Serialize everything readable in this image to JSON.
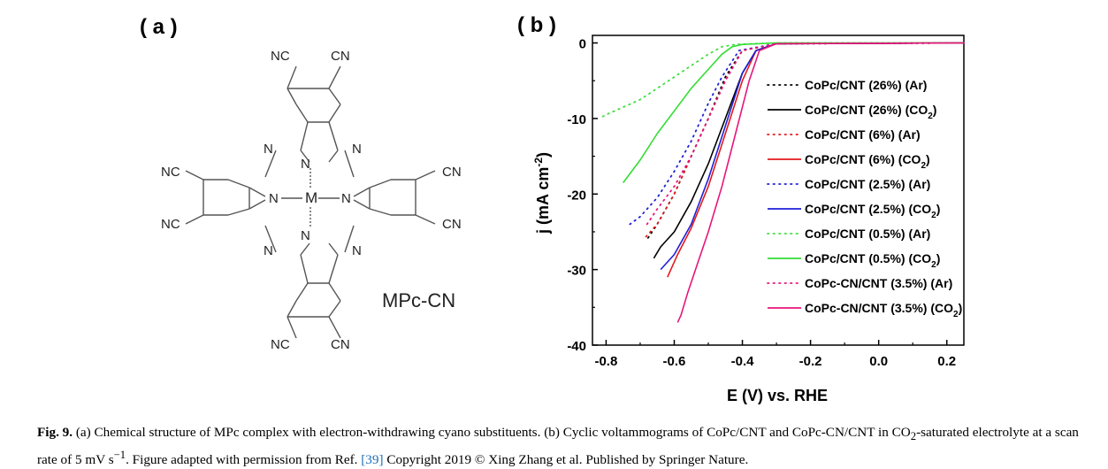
{
  "panel_a": {
    "label": "( a )",
    "center_atom": "M",
    "compound_name": "MPc-CN",
    "atoms": {
      "n": "N",
      "cn": "CN",
      "nc": "NC"
    }
  },
  "panel_b": {
    "label": "( b )"
  },
  "chart_data": {
    "type": "line",
    "xlabel": "E (V) vs. RHE",
    "ylabel": "j (mA cm⁻²)",
    "xlim": [
      -0.84,
      0.25
    ],
    "ylim": [
      -40,
      1
    ],
    "xticks": [
      -0.8,
      -0.6,
      -0.4,
      -0.2,
      0.0,
      0.2
    ],
    "xtick_labels": [
      "-0.8",
      "-0.6",
      "-0.4",
      "-0.2",
      "0.0",
      "0.2"
    ],
    "yticks": [
      0,
      -10,
      -20,
      -30,
      -40
    ],
    "ytick_labels": [
      "0",
      "-10",
      "-20",
      "-30",
      "-40"
    ],
    "grid": false,
    "legend_position": "right",
    "series": [
      {
        "name": "CoPc/CNT (26%) (Ar)",
        "color": "#000000",
        "style": "dotted",
        "points": [
          [
            0.25,
            0.0
          ],
          [
            -0.3,
            -0.1
          ],
          [
            -0.4,
            -1.0
          ],
          [
            -0.45,
            -4.5
          ],
          [
            -0.5,
            -10.0
          ],
          [
            -0.55,
            -15.0
          ],
          [
            -0.6,
            -20.0
          ],
          [
            -0.65,
            -24.0
          ],
          [
            -0.68,
            -26.0
          ]
        ]
      },
      {
        "name": "CoPc/CNT (26%) (CO2)",
        "color": "#000000",
        "style": "solid",
        "points": [
          [
            0.25,
            0.0
          ],
          [
            -0.3,
            -0.1
          ],
          [
            -0.36,
            -1.0
          ],
          [
            -0.4,
            -4.0
          ],
          [
            -0.45,
            -10.0
          ],
          [
            -0.5,
            -16.0
          ],
          [
            -0.55,
            -21.0
          ],
          [
            -0.6,
            -25.0
          ],
          [
            -0.64,
            -27.0
          ],
          [
            -0.66,
            -28.5
          ]
        ]
      },
      {
        "name": "CoPc/CNT (6%) (Ar)",
        "color": "#e31a1c",
        "style": "dotted",
        "points": [
          [
            0.25,
            0.0
          ],
          [
            -0.3,
            -0.1
          ],
          [
            -0.4,
            -1.0
          ],
          [
            -0.45,
            -5.0
          ],
          [
            -0.5,
            -10.0
          ],
          [
            -0.55,
            -15.0
          ],
          [
            -0.6,
            -20.0
          ],
          [
            -0.65,
            -24.0
          ],
          [
            -0.69,
            -26.0
          ]
        ]
      },
      {
        "name": "CoPc/CNT (6%) (CO2)",
        "color": "#e31a1c",
        "style": "solid",
        "points": [
          [
            0.25,
            0.0
          ],
          [
            -0.3,
            -0.1
          ],
          [
            -0.36,
            -1.0
          ],
          [
            -0.4,
            -5.0
          ],
          [
            -0.45,
            -12.0
          ],
          [
            -0.5,
            -19.0
          ],
          [
            -0.55,
            -24.5
          ],
          [
            -0.59,
            -28.0
          ],
          [
            -0.62,
            -31.0
          ]
        ]
      },
      {
        "name": "CoPc/CNT (2.5%) (Ar)",
        "color": "#1f1fd6",
        "style": "dotted",
        "points": [
          [
            0.25,
            0.0
          ],
          [
            -0.3,
            -0.1
          ],
          [
            -0.41,
            -1.0
          ],
          [
            -0.46,
            -4.5
          ],
          [
            -0.5,
            -8.0
          ],
          [
            -0.55,
            -13.0
          ],
          [
            -0.6,
            -17.0
          ],
          [
            -0.65,
            -20.5
          ],
          [
            -0.7,
            -23.0
          ],
          [
            -0.73,
            -24.0
          ]
        ]
      },
      {
        "name": "CoPc/CNT (2.5%) (CO2)",
        "color": "#1f1fd6",
        "style": "solid",
        "points": [
          [
            0.25,
            0.0
          ],
          [
            -0.3,
            -0.1
          ],
          [
            -0.36,
            -1.0
          ],
          [
            -0.4,
            -4.0
          ],
          [
            -0.45,
            -11.0
          ],
          [
            -0.5,
            -18.0
          ],
          [
            -0.55,
            -24.0
          ],
          [
            -0.6,
            -28.0
          ],
          [
            -0.64,
            -30.0
          ]
        ]
      },
      {
        "name": "CoPc/CNT (0.5%) (Ar)",
        "color": "#44dd44",
        "style": "dotted",
        "points": [
          [
            0.25,
            0.0
          ],
          [
            -0.3,
            0.0
          ],
          [
            -0.42,
            -0.2
          ],
          [
            -0.46,
            -0.5
          ],
          [
            -0.5,
            -1.5
          ],
          [
            -0.55,
            -3.0
          ],
          [
            -0.6,
            -4.5
          ],
          [
            -0.65,
            -6.0
          ],
          [
            -0.7,
            -7.5
          ],
          [
            -0.75,
            -8.5
          ],
          [
            -0.8,
            -9.5
          ],
          [
            -0.82,
            -10.0
          ]
        ]
      },
      {
        "name": "CoPc/CNT (0.5%) (CO2)",
        "color": "#33dd33",
        "style": "solid",
        "points": [
          [
            0.25,
            0.0
          ],
          [
            -0.3,
            0.0
          ],
          [
            -0.4,
            -0.2
          ],
          [
            -0.43,
            -0.5
          ],
          [
            -0.46,
            -1.5
          ],
          [
            -0.5,
            -3.5
          ],
          [
            -0.55,
            -6.0
          ],
          [
            -0.6,
            -9.0
          ],
          [
            -0.65,
            -12.0
          ],
          [
            -0.7,
            -15.5
          ],
          [
            -0.75,
            -18.5
          ]
        ]
      },
      {
        "name": "CoPc-CN/CNT (3.5%) (Ar)",
        "color": "#e8157a",
        "style": "dotted",
        "points": [
          [
            0.25,
            0.0
          ],
          [
            -0.3,
            -0.1
          ],
          [
            -0.4,
            -1.0
          ],
          [
            -0.45,
            -5.0
          ],
          [
            -0.5,
            -10.0
          ],
          [
            -0.55,
            -15.0
          ],
          [
            -0.6,
            -19.0
          ],
          [
            -0.65,
            -22.0
          ],
          [
            -0.68,
            -24.0
          ]
        ]
      },
      {
        "name": "CoPc-CN/CNT (3.5%) (CO2)",
        "color": "#e8157a",
        "style": "solid",
        "points": [
          [
            0.25,
            0.0
          ],
          [
            -0.3,
            -0.1
          ],
          [
            -0.35,
            -1.0
          ],
          [
            -0.38,
            -5.0
          ],
          [
            -0.42,
            -12.0
          ],
          [
            -0.46,
            -19.0
          ],
          [
            -0.5,
            -25.0
          ],
          [
            -0.53,
            -29.0
          ],
          [
            -0.56,
            -33.0
          ],
          [
            -0.58,
            -36.0
          ],
          [
            -0.59,
            -37.0
          ]
        ]
      }
    ]
  },
  "legend": [
    {
      "parts": [
        "CoPc/CNT (26%) (Ar)"
      ]
    },
    {
      "parts": [
        "CoPc/CNT (26%) (CO",
        "2",
        ")"
      ]
    },
    {
      "parts": [
        "CoPc/CNT (6%) (Ar)"
      ]
    },
    {
      "parts": [
        "CoPc/CNT (6%) (CO",
        "2",
        ")"
      ]
    },
    {
      "parts": [
        "CoPc/CNT (2.5%) (Ar)"
      ]
    },
    {
      "parts": [
        "CoPc/CNT (2.5%) (CO",
        "2",
        ")"
      ]
    },
    {
      "parts": [
        "CoPc/CNT (0.5%) (Ar)"
      ]
    },
    {
      "parts": [
        "CoPc/CNT (0.5%) (CO",
        "2",
        ")"
      ]
    },
    {
      "parts": [
        "CoPc-CN/CNT (3.5%) (Ar)"
      ]
    },
    {
      "parts": [
        "CoPc-CN/CNT (3.5%) (CO",
        "2",
        ")"
      ]
    }
  ],
  "axis_text": {
    "xlabel": "E (V) vs. RHE",
    "ylabel_main": "j (mA cm",
    "ylabel_sup": "-2",
    "ylabel_end": ")"
  },
  "caption": {
    "fig_label": "Fig. 9.",
    "text1": " (a) Chemical structure of MPc complex with electron-withdrawing cyano substituents. (b) Cyclic voltammograms of CoPc/CNT and CoPc-CN/CNT in CO",
    "sub2": "2",
    "text2": "-saturated electrolyte at a scan rate of 5 mV s",
    "sup": "−1",
    "text3": ". Figure adapted with permission from Ref. ",
    "ref": "[39]",
    "text4": " Copyright 2019 © Xing Zhang et al. Published by Springer Nature."
  }
}
